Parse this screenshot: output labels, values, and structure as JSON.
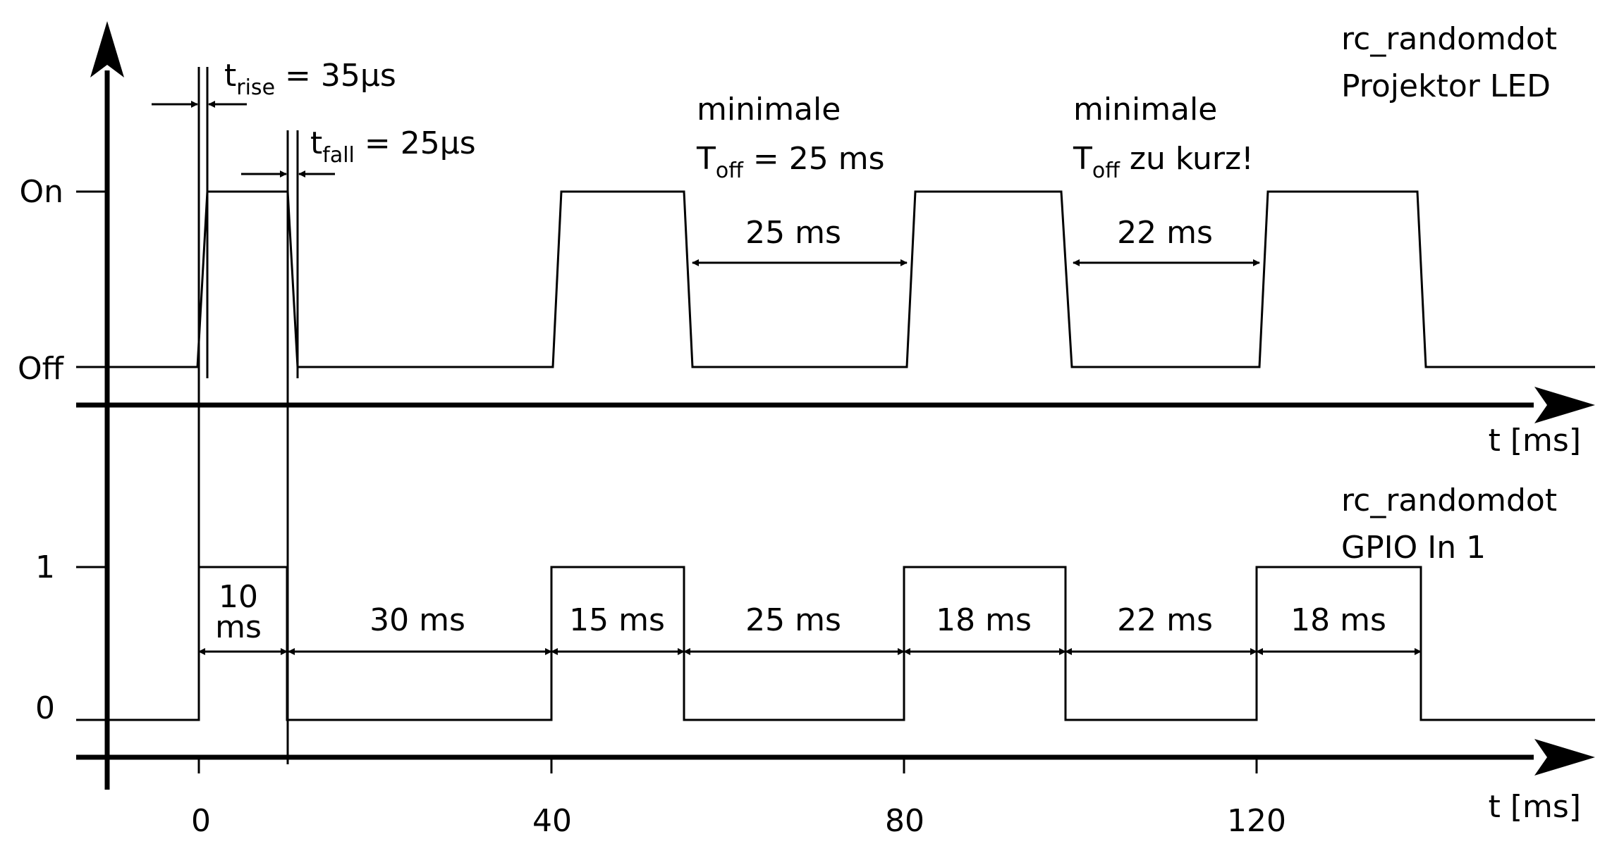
{
  "top_panel": {
    "title_line1": "rc_randomdot",
    "title_line2": "Projektor LED",
    "level_on": "On",
    "level_off": "Off",
    "axis_label": "t [ms]",
    "annotations": {
      "trise_t": "t",
      "trise_sub": "rise",
      "trise_value": " = 35µs",
      "tfall_t": "t",
      "tfall_sub": "fall",
      "tfall_value": " = 25µs",
      "min_toff_1_line1": "minimale",
      "min_toff_1_T": "T",
      "min_toff_1_sub": "off",
      "min_toff_1_value": " = 25 ms",
      "min_toff_2_line1": "minimale",
      "min_toff_2_T": "T",
      "min_toff_2_sub": "off",
      "min_toff_2_value": " zu kurz!"
    },
    "intervals": [
      "25 ms",
      "22 ms"
    ]
  },
  "bottom_panel": {
    "title_line1": "rc_randomdot",
    "title_line2": "GPIO In 1",
    "level_1": "1",
    "level_0": "0",
    "axis_label": "t [ms]",
    "first_interval_line1": "10",
    "first_interval_line2": "ms",
    "intervals": [
      "30 ms",
      "15 ms",
      "25 ms",
      "18 ms",
      "22 ms",
      "18 ms"
    ]
  },
  "x_ticks": [
    "0",
    "40",
    "80",
    "120"
  ],
  "led_pulses_ms": [
    [
      0,
      10
    ],
    [
      40,
      55
    ],
    [
      80,
      98
    ],
    [
      120,
      138
    ]
  ],
  "gpio_pulses_ms": [
    [
      0,
      10
    ],
    [
      40,
      55
    ],
    [
      80,
      98
    ],
    [
      120,
      138
    ]
  ]
}
